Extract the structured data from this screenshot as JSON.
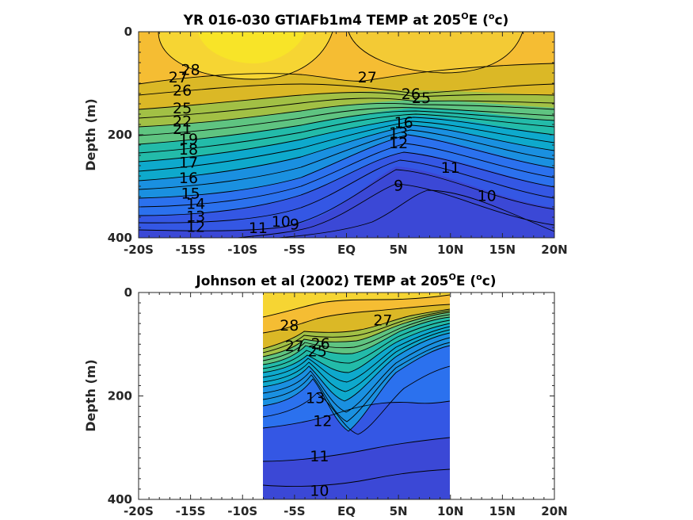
{
  "chart_data": [
    {
      "type": "heatmap",
      "title_main": "YR 016-030 GTIAFb1m4 TEMP at 205",
      "title_sup": "O",
      "title_end": "E (",
      "title_unit_sup": "o",
      "title_unit_end": "c)",
      "ylabel": "Depth (m)",
      "xlim": [
        -20,
        20
      ],
      "ylim": [
        0,
        400
      ],
      "y_reversed": true,
      "x_tick_labels": [
        "-20S",
        "-15S",
        "-10S",
        "-5S",
        "EQ",
        "5N",
        "10N",
        "15N",
        "20N"
      ],
      "y_tick_labels": [
        "0",
        "200",
        "400"
      ],
      "data_extent_x": [
        -20,
        20
      ],
      "colormap": "parula",
      "clim": [
        8,
        29
      ],
      "contour_levels": [
        9,
        10,
        11,
        12,
        13,
        14,
        15,
        16,
        17,
        18,
        19,
        20,
        21,
        22,
        23,
        24,
        25,
        26,
        27,
        28
      ],
      "contour_labels": [
        {
          "text": "28",
          "x": -15,
          "y": 75
        },
        {
          "text": "27",
          "x": -16.2,
          "y": 90
        },
        {
          "text": "26",
          "x": -15.8,
          "y": 115
        },
        {
          "text": "25",
          "x": -15.8,
          "y": 150
        },
        {
          "text": "22",
          "x": -15.8,
          "y": 175
        },
        {
          "text": "21",
          "x": -15.8,
          "y": 190
        },
        {
          "text": "19",
          "x": -15.2,
          "y": 210
        },
        {
          "text": "18",
          "x": -15.2,
          "y": 230
        },
        {
          "text": "17",
          "x": -15.2,
          "y": 255
        },
        {
          "text": "16",
          "x": -15.2,
          "y": 285
        },
        {
          "text": "15",
          "x": -15,
          "y": 315
        },
        {
          "text": "14",
          "x": -14.5,
          "y": 335
        },
        {
          "text": "13",
          "x": -14.5,
          "y": 360
        },
        {
          "text": "12",
          "x": -14.5,
          "y": 380
        },
        {
          "text": "11",
          "x": -8.5,
          "y": 382
        },
        {
          "text": "10",
          "x": -6.3,
          "y": 370
        },
        {
          "text": "9",
          "x": -5,
          "y": 375
        },
        {
          "text": "27",
          "x": 2,
          "y": 90
        },
        {
          "text": "26",
          "x": 6.2,
          "y": 122
        },
        {
          "text": "25",
          "x": 7.2,
          "y": 130
        },
        {
          "text": "16",
          "x": 5.5,
          "y": 178
        },
        {
          "text": "13",
          "x": 5,
          "y": 198
        },
        {
          "text": "12",
          "x": 5,
          "y": 218
        },
        {
          "text": "11",
          "x": 10,
          "y": 265
        },
        {
          "text": "10",
          "x": 13.5,
          "y": 320
        },
        {
          "text": "9",
          "x": 5,
          "y": 300
        }
      ]
    },
    {
      "type": "heatmap",
      "title_main": "Johnson et al (2002) TEMP at 205",
      "title_sup": "O",
      "title_end": "E (",
      "title_unit_sup": "o",
      "title_unit_end": "c)",
      "ylabel": "Depth (m)",
      "xlim": [
        -20,
        20
      ],
      "ylim": [
        0,
        400
      ],
      "y_reversed": true,
      "x_tick_labels": [
        "-20S",
        "-15S",
        "-10S",
        "-5S",
        "EQ",
        "5N",
        "10N",
        "15N",
        "20N"
      ],
      "y_tick_labels": [
        "0",
        "200",
        "400"
      ],
      "data_extent_x": [
        -8,
        10
      ],
      "colormap": "parula",
      "clim": [
        8,
        29
      ],
      "contour_levels": [
        10,
        11,
        12,
        13,
        14,
        15,
        16,
        17,
        18,
        19,
        20,
        21,
        22,
        23,
        24,
        25,
        26,
        27,
        28
      ],
      "contour_labels": [
        {
          "text": "28",
          "x": -5.5,
          "y": 65
        },
        {
          "text": "27",
          "x": -5,
          "y": 105
        },
        {
          "text": "26",
          "x": -2.5,
          "y": 100
        },
        {
          "text": "25",
          "x": -2.8,
          "y": 115
        },
        {
          "text": "13",
          "x": -3,
          "y": 205
        },
        {
          "text": "12",
          "x": -2.3,
          "y": 250
        },
        {
          "text": "27",
          "x": 3.5,
          "y": 55
        },
        {
          "text": "11",
          "x": -2.6,
          "y": 318
        },
        {
          "text": "10",
          "x": -2.6,
          "y": 385
        }
      ]
    }
  ]
}
